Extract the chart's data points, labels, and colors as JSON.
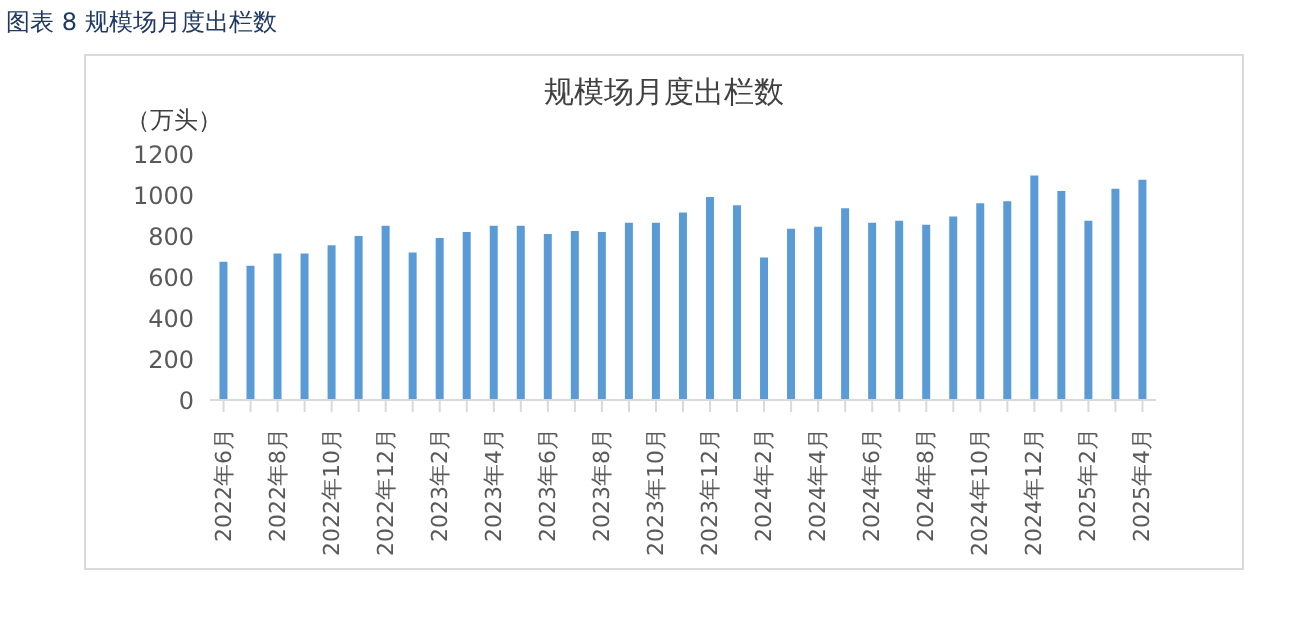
{
  "chart_data": {
    "type": "bar",
    "title": "规模场月度出栏数",
    "ylabel": "（万头）",
    "annotations": [
      "图表 8  规模场月度出栏数"
    ],
    "categories": [
      "2022年6月",
      null,
      "2022年8月",
      null,
      "2022年10月",
      null,
      "2022年12月",
      null,
      "2023年2月",
      null,
      "2023年4月",
      null,
      "2023年6月",
      null,
      "2023年8月",
      null,
      "2023年10月",
      null,
      "2023年12月",
      null,
      "2024年2月",
      null,
      "2024年4月",
      null,
      "2024年6月",
      null,
      "2024年8月",
      null,
      "2024年10月",
      null,
      "2024年12月",
      null,
      "2025年2月",
      null,
      "2025年4月"
    ],
    "values": [
      675,
      655,
      715,
      715,
      755,
      800,
      850,
      720,
      790,
      820,
      850,
      850,
      810,
      825,
      820,
      865,
      865,
      915,
      990,
      950,
      695,
      835,
      845,
      935,
      865,
      875,
      855,
      895,
      960,
      970,
      1095,
      1020,
      875,
      1030,
      1075
    ],
    "color": "#5b9bd5",
    "ylim": [
      0,
      1200
    ],
    "yticks": [
      0,
      200,
      400,
      600,
      800,
      1000,
      1200
    ],
    "grid": false,
    "legend": false
  }
}
